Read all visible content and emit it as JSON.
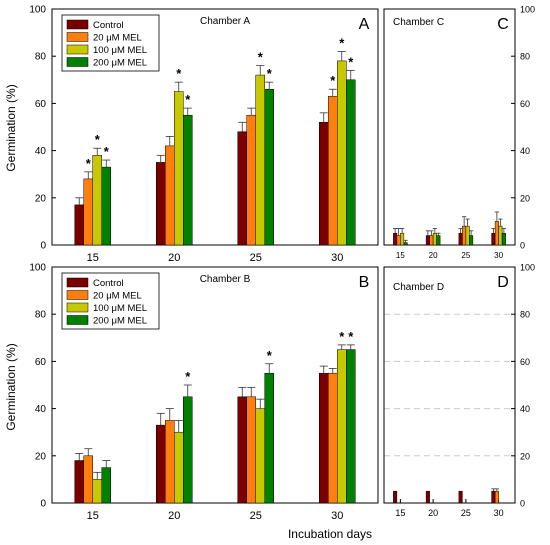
{
  "colors": {
    "Control": "#7a0000",
    "20 μM MEL": "#ff7f0e",
    "100 μM MEL": "#c8c800",
    "200 μM MEL": "#008000",
    "error_bar": "#333333",
    "grid": "#cccccc"
  },
  "figure": {
    "xlabel": "Incubation days",
    "ylabel": "Germination (%)",
    "legend": [
      "Control",
      "20 μM MEL",
      "100 μM MEL",
      "200 μM MEL"
    ],
    "star": "*"
  },
  "chart_data": [
    {
      "type": "bar",
      "panel_letter": "A",
      "subtitle": "Chamber A",
      "categories": [
        "15",
        "20",
        "25",
        "30"
      ],
      "xlabel": "",
      "ylabel": "Germination (%)",
      "ylim": [
        0,
        100
      ],
      "yticks": [
        0,
        20,
        40,
        60,
        80,
        100
      ],
      "ytick_side": "left",
      "legend": "top-left",
      "grid": false,
      "series": [
        {
          "name": "Control",
          "values": [
            17,
            35,
            48,
            52
          ],
          "errors": [
            3,
            3,
            4,
            4
          ],
          "stars": [
            false,
            false,
            false,
            false
          ]
        },
        {
          "name": "20 μM MEL",
          "values": [
            28,
            42,
            55,
            63
          ],
          "errors": [
            3,
            4,
            3,
            3
          ],
          "stars": [
            true,
            false,
            false,
            true
          ]
        },
        {
          "name": "100 μM MEL",
          "values": [
            38,
            65,
            72,
            78
          ],
          "errors": [
            3,
            4,
            4,
            4
          ],
          "stars": [
            true,
            true,
            true,
            true
          ]
        },
        {
          "name": "200 μM MEL",
          "values": [
            33,
            55,
            66,
            70
          ],
          "errors": [
            3,
            3,
            3,
            4
          ],
          "stars": [
            true,
            true,
            true,
            true
          ]
        }
      ]
    },
    {
      "type": "bar",
      "panel_letter": "B",
      "subtitle": "Chamber B",
      "categories": [
        "15",
        "20",
        "25",
        "30"
      ],
      "xlabel": "Incubation days",
      "ylabel": "Germination (%)",
      "ylim": [
        0,
        100
      ],
      "yticks": [
        0,
        20,
        40,
        60,
        80,
        100
      ],
      "ytick_side": "left",
      "legend": "top-left",
      "grid": false,
      "series": [
        {
          "name": "Control",
          "values": [
            18,
            33,
            45,
            55
          ],
          "errors": [
            3,
            5,
            4,
            3
          ],
          "stars": [
            false,
            false,
            false,
            false
          ]
        },
        {
          "name": "20 μM MEL",
          "values": [
            20,
            35,
            45,
            55
          ],
          "errors": [
            3,
            5,
            4,
            2
          ],
          "stars": [
            false,
            false,
            false,
            false
          ]
        },
        {
          "name": "100 μM MEL",
          "values": [
            10,
            30,
            40,
            65
          ],
          "errors": [
            3,
            5,
            4,
            2
          ],
          "stars": [
            false,
            false,
            false,
            true
          ]
        },
        {
          "name": "200 μM MEL",
          "values": [
            15,
            45,
            55,
            65
          ],
          "errors": [
            3,
            5,
            4,
            2
          ],
          "stars": [
            false,
            true,
            true,
            true
          ]
        }
      ]
    },
    {
      "type": "bar",
      "panel_letter": "C",
      "subtitle": "Chamber C",
      "categories": [
        "15",
        "20",
        "25",
        "30"
      ],
      "xlabel": "",
      "ylabel": "",
      "ylim": [
        0,
        100
      ],
      "yticks": [
        0,
        20,
        40,
        60,
        80,
        100
      ],
      "ytick_side": "right",
      "legend": "none",
      "grid": false,
      "series": [
        {
          "name": "Control",
          "values": [
            5,
            4,
            5,
            5
          ],
          "errors": [
            2,
            2,
            2,
            2
          ],
          "stars": [
            false,
            false,
            false,
            false
          ]
        },
        {
          "name": "20 μM MEL",
          "values": [
            4,
            4,
            8,
            10
          ],
          "errors": [
            3,
            2,
            4,
            4
          ],
          "stars": [
            false,
            false,
            false,
            false
          ]
        },
        {
          "name": "100 μM MEL",
          "values": [
            5,
            5,
            8,
            8
          ],
          "errors": [
            2,
            2,
            3,
            3
          ],
          "stars": [
            false,
            false,
            false,
            false
          ]
        },
        {
          "name": "200 μM MEL",
          "values": [
            1,
            4,
            4,
            5
          ],
          "errors": [
            1,
            1,
            2,
            2
          ],
          "stars": [
            false,
            false,
            false,
            false
          ]
        }
      ]
    },
    {
      "type": "bar",
      "panel_letter": "D",
      "subtitle": "Chamber D",
      "categories": [
        "15",
        "20",
        "25",
        "30"
      ],
      "xlabel": "",
      "ylabel": "",
      "ylim": [
        0,
        100
      ],
      "yticks": [
        0,
        20,
        40,
        60,
        80,
        100
      ],
      "ytick_side": "right",
      "legend": "none",
      "grid": true,
      "series": [
        {
          "name": "Control",
          "values": [
            5,
            5,
            5,
            5
          ],
          "errors": [
            0,
            0,
            0,
            1
          ],
          "stars": [
            false,
            false,
            false,
            false
          ]
        },
        {
          "name": "20 μM MEL",
          "values": [
            0,
            0,
            0,
            5
          ],
          "errors": [
            0,
            0,
            0,
            1
          ],
          "stars": [
            false,
            false,
            false,
            false
          ]
        },
        {
          "name": "100 μM MEL",
          "values": [
            0,
            0,
            0,
            0
          ],
          "errors": [
            0,
            0,
            0,
            0
          ],
          "stars": [
            false,
            false,
            false,
            false
          ]
        },
        {
          "name": "200 μM MEL",
          "values": [
            0,
            0,
            0,
            0
          ],
          "errors": [
            0,
            0,
            0,
            0
          ],
          "stars": [
            false,
            false,
            false,
            false
          ]
        }
      ]
    }
  ]
}
